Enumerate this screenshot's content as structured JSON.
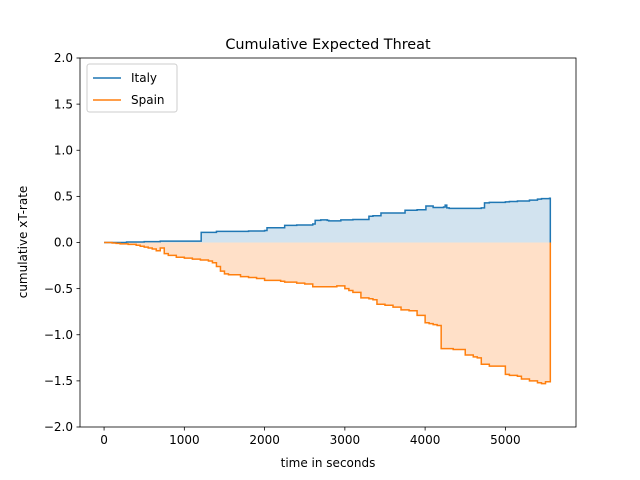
{
  "chart_data": {
    "type": "line",
    "title": "Cumulative Expected Threat",
    "xlabel": "time in seconds",
    "ylabel": "cumulative xT-rate",
    "xlim": [
      -300,
      5880
    ],
    "ylim": [
      -2.0,
      2.0
    ],
    "xticks": [
      0,
      1000,
      2000,
      3000,
      4000,
      5000
    ],
    "yticks": [
      -2.0,
      -1.5,
      -1.0,
      -0.5,
      0.0,
      0.5,
      1.0,
      1.5,
      2.0
    ],
    "xtick_labels": [
      "0",
      "1000",
      "2000",
      "3000",
      "4000",
      "5000"
    ],
    "ytick_labels": [
      "−2.0",
      "−1.5",
      "−1.0",
      "−0.5",
      "0.0",
      "0.5",
      "1.0",
      "1.5",
      "2.0"
    ],
    "grid": false,
    "legend_position": "top-left",
    "series": [
      {
        "name": "Italy",
        "color": "#1f77b4",
        "fill_color": "#d2e3ef",
        "step": true,
        "x": [
          0,
          100,
          200,
          280,
          330,
          500,
          700,
          900,
          1210,
          1400,
          1600,
          1800,
          1990,
          2000,
          2030,
          2250,
          2400,
          2600,
          2630,
          2700,
          2780,
          2800,
          2850,
          2950,
          3100,
          3300,
          3350,
          3450,
          3750,
          3800,
          3850,
          3900,
          4000,
          4010,
          4100,
          4150,
          4200,
          4230,
          4250,
          4270,
          4300,
          4350,
          4400,
          4450,
          4700,
          4740,
          4800,
          4900,
          5000,
          5050,
          5150,
          5200,
          5300,
          5400,
          5450,
          5550,
          5560
        ],
        "y": [
          0.0,
          0.0,
          0.0,
          0.005,
          0.005,
          0.01,
          0.015,
          0.015,
          0.11,
          0.12,
          0.12,
          0.125,
          0.125,
          0.13,
          0.16,
          0.185,
          0.19,
          0.2,
          0.24,
          0.245,
          0.24,
          0.235,
          0.235,
          0.245,
          0.25,
          0.285,
          0.29,
          0.32,
          0.35,
          0.35,
          0.35,
          0.355,
          0.355,
          0.395,
          0.38,
          0.38,
          0.38,
          0.385,
          0.405,
          0.375,
          0.37,
          0.37,
          0.37,
          0.37,
          0.375,
          0.43,
          0.435,
          0.435,
          0.44,
          0.445,
          0.45,
          0.45,
          0.46,
          0.47,
          0.475,
          0.48,
          0.48
        ]
      },
      {
        "name": "Spain",
        "color": "#ff7f0e",
        "fill_color": "#ffe0c8",
        "step": true,
        "x": [
          0,
          100,
          150,
          200,
          300,
          400,
          450,
          500,
          550,
          600,
          650,
          700,
          750,
          800,
          900,
          1000,
          1100,
          1200,
          1300,
          1350,
          1400,
          1450,
          1500,
          1550,
          1600,
          1700,
          1800,
          1900,
          2000,
          2100,
          2200,
          2250,
          2300,
          2400,
          2500,
          2600,
          2700,
          2800,
          2900,
          3000,
          3050,
          3100,
          3200,
          3300,
          3350,
          3400,
          3500,
          3600,
          3700,
          3800,
          3900,
          3950,
          4000,
          4050,
          4100,
          4150,
          4200,
          4250,
          4300,
          4350,
          4500,
          4600,
          4650,
          4700,
          4800,
          4900,
          5000,
          5050,
          5100,
          5150,
          5200,
          5300,
          5400,
          5450,
          5500,
          5560
        ],
        "y": [
          0.0,
          -0.005,
          -0.01,
          -0.015,
          -0.02,
          -0.03,
          -0.04,
          -0.05,
          -0.06,
          -0.07,
          -0.09,
          -0.06,
          -0.12,
          -0.14,
          -0.16,
          -0.17,
          -0.18,
          -0.19,
          -0.2,
          -0.22,
          -0.26,
          -0.31,
          -0.34,
          -0.35,
          -0.35,
          -0.37,
          -0.38,
          -0.39,
          -0.41,
          -0.41,
          -0.42,
          -0.43,
          -0.43,
          -0.44,
          -0.45,
          -0.48,
          -0.48,
          -0.48,
          -0.47,
          -0.5,
          -0.52,
          -0.54,
          -0.6,
          -0.61,
          -0.62,
          -0.67,
          -0.68,
          -0.7,
          -0.73,
          -0.74,
          -0.79,
          -0.79,
          -0.87,
          -0.88,
          -0.89,
          -0.9,
          -1.15,
          -1.15,
          -1.15,
          -1.16,
          -1.22,
          -1.24,
          -1.25,
          -1.32,
          -1.34,
          -1.34,
          -1.43,
          -1.44,
          -1.44,
          -1.45,
          -1.48,
          -1.5,
          -1.52,
          -1.53,
          -1.51,
          -1.51
        ]
      }
    ]
  }
}
